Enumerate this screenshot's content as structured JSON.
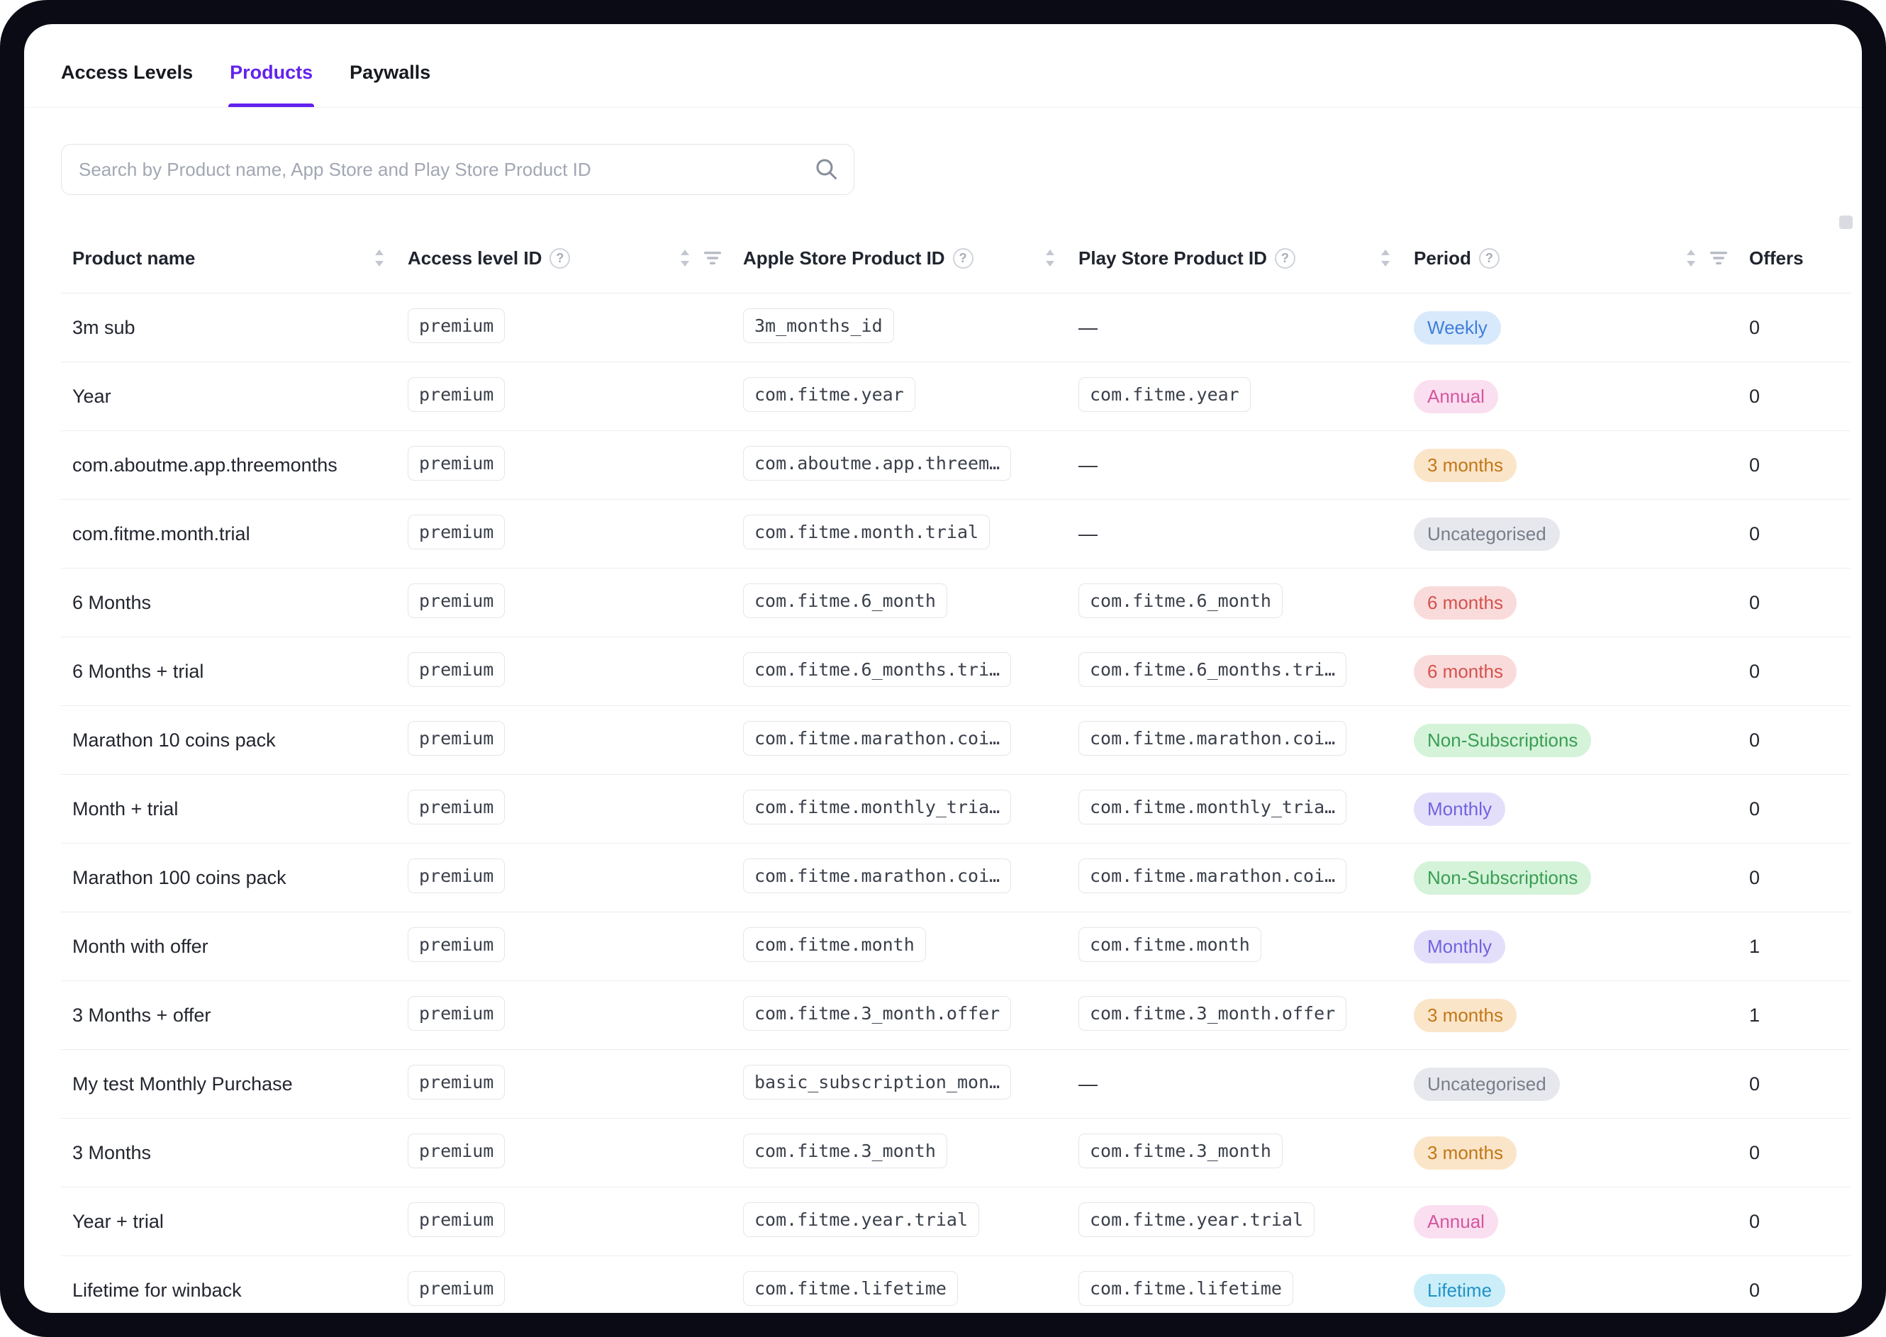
{
  "colors": {
    "accent": "#6322EE"
  },
  "tabs": [
    {
      "label": "Access Levels",
      "active": false
    },
    {
      "label": "Products",
      "active": true
    },
    {
      "label": "Paywalls",
      "active": false
    }
  ],
  "search": {
    "placeholder": "Search by Product name, App Store and Play Store Product ID"
  },
  "table": {
    "columns": [
      {
        "label": "Product name",
        "help": false,
        "sort": true,
        "filter": false
      },
      {
        "label": "Access level ID",
        "help": true,
        "sort": true,
        "filter": true
      },
      {
        "label": "Apple Store Product ID",
        "help": true,
        "sort": true,
        "filter": false
      },
      {
        "label": "Play Store Product ID",
        "help": true,
        "sort": true,
        "filter": false
      },
      {
        "label": "Period",
        "help": true,
        "sort": true,
        "filter": true
      },
      {
        "label": "Offers",
        "help": false,
        "sort": false,
        "filter": false
      }
    ],
    "rows": [
      {
        "name": "3m sub",
        "access": "premium",
        "apple": "3m_months_id",
        "play": "—",
        "period": "Weekly",
        "period_type": "weekly",
        "offers": "0"
      },
      {
        "name": "Year",
        "access": "premium",
        "apple": "com.fitme.year",
        "play": "com.fitme.year",
        "period": "Annual",
        "period_type": "annual",
        "offers": "0"
      },
      {
        "name": "com.aboutme.app.threemonths",
        "access": "premium",
        "apple": "com.aboutme.app.threem…",
        "play": "—",
        "period": "3 months",
        "period_type": "three_months",
        "offers": "0"
      },
      {
        "name": "com.fitme.month.trial",
        "access": "premium",
        "apple": "com.fitme.month.trial",
        "play": "—",
        "period": "Uncategorised",
        "period_type": "uncategorised",
        "offers": "0"
      },
      {
        "name": "6 Months",
        "access": "premium",
        "apple": "com.fitme.6_month",
        "play": "com.fitme.6_month",
        "period": "6 months",
        "period_type": "six_months",
        "offers": "0"
      },
      {
        "name": "6 Months + trial",
        "access": "premium",
        "apple": "com.fitme.6_months.tri…",
        "play": "com.fitme.6_months.tri…",
        "period": "6 months",
        "period_type": "six_months",
        "offers": "0"
      },
      {
        "name": "Marathon 10 coins pack",
        "access": "premium",
        "apple": "com.fitme.marathon.coi…",
        "play": "com.fitme.marathon.coi…",
        "period": "Non-Subscriptions",
        "period_type": "non_subscriptions",
        "offers": "0"
      },
      {
        "name": "Month + trial",
        "access": "premium",
        "apple": "com.fitme.monthly_tria…",
        "play": "com.fitme.monthly_tria…",
        "period": "Monthly",
        "period_type": "monthly",
        "offers": "0"
      },
      {
        "name": "Marathon 100 coins pack",
        "access": "premium",
        "apple": "com.fitme.marathon.coi…",
        "play": "com.fitme.marathon.coi…",
        "period": "Non-Subscriptions",
        "period_type": "non_subscriptions",
        "offers": "0"
      },
      {
        "name": "Month with offer",
        "access": "premium",
        "apple": "com.fitme.month",
        "play": "com.fitme.month",
        "period": "Monthly",
        "period_type": "monthly",
        "offers": "1"
      },
      {
        "name": "3 Months + offer",
        "access": "premium",
        "apple": "com.fitme.3_month.offer",
        "play": "com.fitme.3_month.offer",
        "period": "3 months",
        "period_type": "three_months",
        "offers": "1"
      },
      {
        "name": "My test Monthly Purchase",
        "access": "premium",
        "apple": "basic_subscription_mon…",
        "play": "—",
        "period": "Uncategorised",
        "period_type": "uncategorised",
        "offers": "0"
      },
      {
        "name": "3 Months",
        "access": "premium",
        "apple": "com.fitme.3_month",
        "play": "com.fitme.3_month",
        "period": "3 months",
        "period_type": "three_months",
        "offers": "0"
      },
      {
        "name": "Year + trial",
        "access": "premium",
        "apple": "com.fitme.year.trial",
        "play": "com.fitme.year.trial",
        "period": "Annual",
        "period_type": "annual",
        "offers": "0"
      },
      {
        "name": "Lifetime for winback",
        "access": "premium",
        "apple": "com.fitme.lifetime",
        "play": "com.fitme.lifetime",
        "period": "Lifetime",
        "period_type": "lifetime",
        "offers": "0"
      }
    ]
  },
  "badge_colors": {
    "weekly": {
      "bg": "#D9E9FC",
      "fg": "#3F7EDB"
    },
    "annual": {
      "bg": "#FADFF0",
      "fg": "#D6569F"
    },
    "three_months": {
      "bg": "#FBE5C9",
      "fg": "#C17717"
    },
    "uncategorised": {
      "bg": "#E7E8ED",
      "fg": "#787E8A"
    },
    "six_months": {
      "bg": "#FADBDB",
      "fg": "#D4524E"
    },
    "non_subscriptions": {
      "bg": "#D4F3D9",
      "fg": "#3A9E54"
    },
    "monthly": {
      "bg": "#E3DFFB",
      "fg": "#7163DE"
    },
    "lifetime": {
      "bg": "#CBEEF9",
      "fg": "#2092C4"
    }
  }
}
